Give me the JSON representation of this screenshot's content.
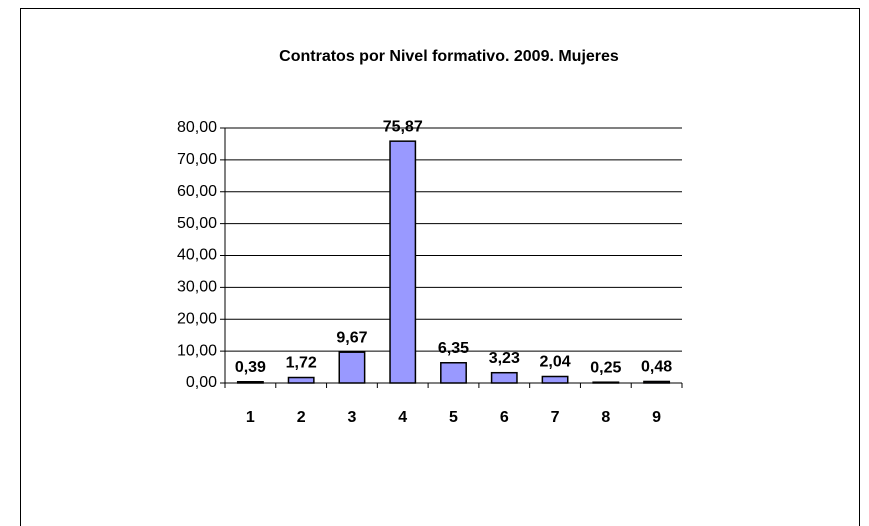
{
  "chart_data": {
    "type": "bar",
    "title": "Contratos por Nivel formativo. 2009. Mujeres",
    "categories": [
      "1",
      "2",
      "3",
      "4",
      "5",
      "6",
      "7",
      "8",
      "9"
    ],
    "values": [
      0.39,
      1.72,
      9.67,
      75.87,
      6.35,
      3.23,
      2.04,
      0.25,
      0.48
    ],
    "value_labels": [
      "0,39",
      "1,72",
      "9,67",
      "75,87",
      "6,35",
      "3,23",
      "2,04",
      "0,25",
      "0,48"
    ],
    "color": "#9999ff",
    "ylim": [
      0,
      80
    ],
    "yticks": [
      {
        "value": 0,
        "label": "0,00"
      },
      {
        "value": 10,
        "label": "10,00"
      },
      {
        "value": 20,
        "label": "20,00"
      },
      {
        "value": 30,
        "label": "30,00"
      },
      {
        "value": 40,
        "label": "40,00"
      },
      {
        "value": 50,
        "label": "50,00"
      },
      {
        "value": 60,
        "label": "60,00"
      },
      {
        "value": 70,
        "label": "70,00"
      },
      {
        "value": 80,
        "label": "80,00"
      }
    ],
    "grid": true
  }
}
